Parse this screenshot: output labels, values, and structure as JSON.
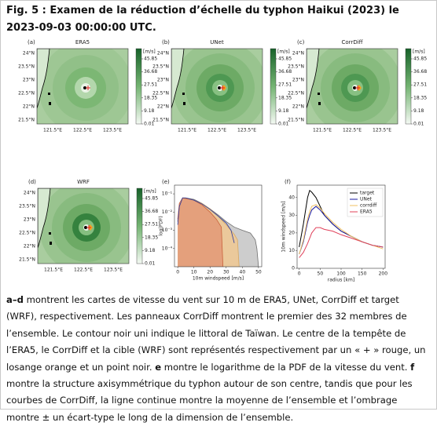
{
  "header": {
    "title": "Fig. 5 : Examen de la réduction d’échelle du typhon Haikui (2023) le 2023-09-03 00:00:00 UTC."
  },
  "figure": {
    "map_axes": {
      "yticks": [
        "24°N",
        "23.5°N",
        "23°N",
        "22.5°N",
        "22°N",
        "21.5°N"
      ],
      "xticks": [
        "121.5°E",
        "122.5°E",
        "123.5°E"
      ],
      "colorbar_ticks": [
        45.85,
        36.68,
        27.51,
        18.35,
        9.18,
        0.01
      ],
      "colorbar_unit": "[m/s]"
    },
    "maps": [
      {
        "label": "(a)",
        "title": "ERA5"
      },
      {
        "label": "(b)",
        "title": "UNet"
      },
      {
        "label": "(c)",
        "title": "CorrDiff"
      },
      {
        "label": "(d)",
        "title": "WRF"
      }
    ],
    "pdf": {
      "label": "(e)",
      "chart_data": {
        "type": "area",
        "x_label": "10m windspeed [m/s]",
        "y_label": "log(PDF)",
        "log_y": true,
        "xlim": [
          -2,
          52
        ],
        "xticks": [
          0,
          10,
          20,
          30,
          40,
          50
        ],
        "ylim": [
          1e-05,
          0.3
        ],
        "yticks": [
          {
            "value": 0.1,
            "label": "10⁻¹"
          },
          {
            "value": 0.01,
            "label": "10⁻²"
          },
          {
            "value": 0.001,
            "label": "10⁻³"
          },
          {
            "value": 0.0001,
            "label": "10⁻⁴"
          }
        ],
        "series": [
          {
            "color": "#6e6e6e",
            "fill": "#cdcdcd",
            "x": [
              0,
              1,
              3,
              5,
              10,
              15,
              20,
              25,
              30,
              35,
              40,
              45,
              48,
              49,
              50
            ],
            "values": [
              0.003,
              0.02,
              0.06,
              0.06,
              0.05,
              0.03,
              0.015,
              0.007,
              0.003,
              0.0015,
              0.001,
              0.0007,
              0.0003,
              0.0001,
              1e-05
            ]
          },
          {
            "color": "#d9a860",
            "fill": "#ebc99b",
            "x": [
              0,
              1,
              3,
              5,
              8,
              10,
              15,
              20,
              25,
              30,
              35,
              37,
              38
            ],
            "values": [
              0.003,
              0.02,
              0.05,
              0.055,
              0.05,
              0.045,
              0.03,
              0.015,
              0.006,
              0.002,
              0.0006,
              0.0003,
              1e-05
            ]
          },
          {
            "color": "#c8603a",
            "fill": "#e4a07c",
            "x": [
              0,
              1,
              3,
              5,
              8,
              10,
              15,
              20,
              24,
              27,
              28
            ],
            "values": [
              0.004,
              0.03,
              0.06,
              0.055,
              0.05,
              0.045,
              0.025,
              0.01,
              0.004,
              0.0015,
              1e-05
            ]
          },
          {
            "color": "#2a3aa0",
            "x": [
              0,
              1,
              3,
              5,
              10,
              15,
              20,
              25,
              30,
              33,
              35
            ],
            "values": [
              0.002,
              0.02,
              0.06,
              0.06,
              0.045,
              0.028,
              0.014,
              0.006,
              0.0025,
              0.001,
              0.0002
            ]
          }
        ]
      }
    },
    "profile": {
      "label": "(f)",
      "chart_data": {
        "type": "line",
        "x_label": "radius [km]",
        "y_label": "10m windspeed [m/s]",
        "xlim": [
          -5,
          205
        ],
        "xticks": [
          0,
          50,
          100,
          150,
          200
        ],
        "ylim": [
          0,
          47
        ],
        "yticks": [
          0,
          10,
          20,
          30,
          40
        ],
        "legend": "upper right",
        "x": [
          0,
          10,
          20,
          25,
          30,
          40,
          50,
          60,
          80,
          100,
          125,
          150,
          175,
          200
        ],
        "series": [
          {
            "name": "target",
            "color": "#000000",
            "values": [
              12,
              25,
              40,
              44,
              43,
              40,
              35,
              30,
              25,
              21,
              18,
              15,
              13,
              12
            ]
          },
          {
            "name": "UNet",
            "color": "#1a1aa0",
            "values": [
              8,
              15,
              26,
              30,
              33,
              35,
              33,
              30,
              25,
              21,
              18,
              15,
              13,
              12
            ]
          },
          {
            "name": "corrdiff",
            "color": "#f0c060",
            "values": [
              8,
              16,
              28,
              32,
              35,
              36,
              34,
              31,
              26,
              22,
              18,
              15,
              13,
              11
            ]
          },
          {
            "name": "ERA5",
            "color": "#e0405a",
            "values": [
              6,
              9,
              14,
              17,
              20,
              23,
              23,
              22,
              21,
              19,
              17,
              15,
              13,
              12
            ]
          }
        ]
      }
    }
  },
  "caption": [
    {
      "text": "a–d",
      "bold": true
    },
    {
      "text": " montrent les cartes de vitesse du vent sur 10 m de ERA5, UNet, CorrDiff et target (WRF), respectivement. Les panneaux CorrDiff montrent le premier des 32 membres de l’ensemble. Le contour noir uni indique le littoral de Taïwan. Le centre de la tempête de l’ERA5, le CorrDiff et la cible (WRF) sont représentés respectivement par un « + » rouge, un losange orange et un point noir. "
    },
    {
      "text": "e",
      "bold": true
    },
    {
      "text": " montre le logarithme de la PDF de la vitesse du vent. "
    },
    {
      "text": "f",
      "bold": true
    },
    {
      "text": " montre la structure axisymmétrique du typhon autour de son centre, tandis que pour les courbes de CorrDiff, la ligne continue montre la moyenne de l’ensemble et l’ombrage montre ± un écart-type le long de la dimension de l’ensemble."
    }
  ]
}
